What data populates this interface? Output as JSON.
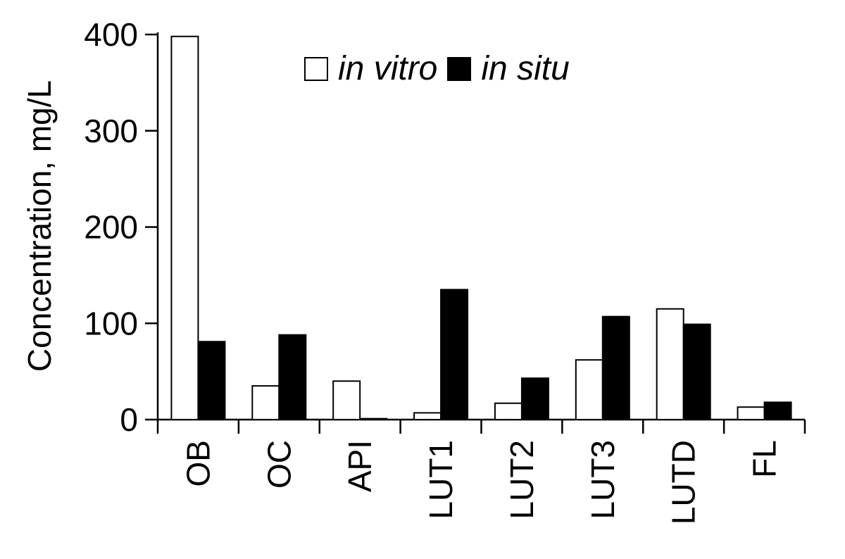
{
  "chart_data": {
    "type": "bar",
    "categories": [
      "OB",
      "OC",
      "API",
      "LUT1",
      "LUT2",
      "LUT3",
      "LUTD",
      "FL"
    ],
    "series": [
      {
        "name": "in vitro",
        "color": "#ffffff",
        "values": [
          398,
          35,
          40,
          7,
          17,
          62,
          115,
          13
        ]
      },
      {
        "name": "in situ",
        "color": "#000000",
        "values": [
          81,
          88,
          1,
          135,
          43,
          107,
          99,
          18
        ]
      }
    ],
    "ylabel": "Concentration, mg/L",
    "ylim": [
      0,
      400
    ],
    "yticks": [
      0,
      100,
      200,
      300,
      400
    ],
    "grid": false,
    "legend_position": "top-center"
  }
}
